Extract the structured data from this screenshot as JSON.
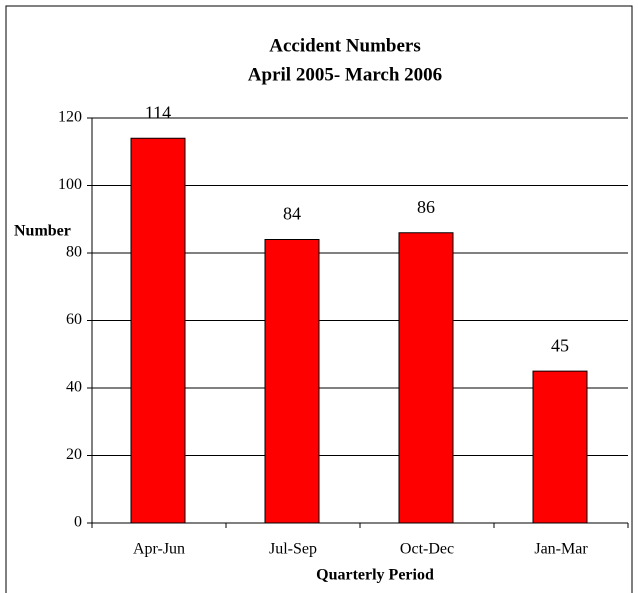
{
  "chart_data": {
    "type": "bar",
    "title": "Accident Numbers",
    "subtitle": "April 2005- March 2006",
    "x_label": "Quarterly Period",
    "y_label": "Number",
    "categories": [
      "Apr-Jun",
      "Jul-Sep",
      "Oct-Dec",
      "Jan-Mar"
    ],
    "values": [
      114,
      84,
      86,
      45
    ],
    "color": "#ff0000",
    "ylim": [
      0,
      120
    ],
    "yticks": [
      0,
      20,
      40,
      60,
      80,
      100,
      120
    ],
    "grid": true
  }
}
